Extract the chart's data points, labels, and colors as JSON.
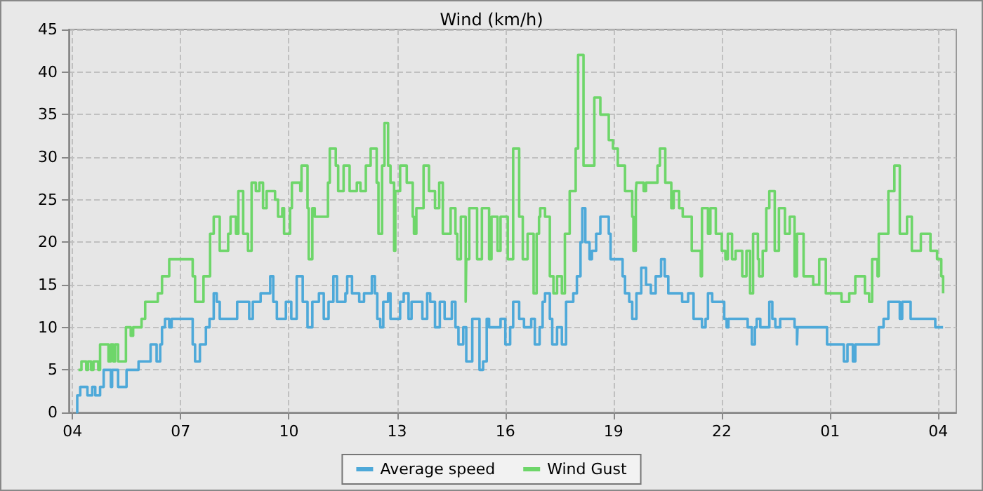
{
  "chart_data": {
    "type": "step",
    "title": "Wind (km/h)",
    "xlim": [
      "--01-01T03:54",
      "--01-02T04:30"
    ],
    "xticks": [
      {
        "value": "--01-01T04:00",
        "label": "04"
      },
      {
        "value": "--01-01T07:00",
        "label": "07"
      },
      {
        "value": "--01-01T10:00",
        "label": "10"
      },
      {
        "value": "--01-01T13:00",
        "label": "13"
      },
      {
        "value": "--01-01T16:00",
        "label": "16"
      },
      {
        "value": "--01-01T19:00",
        "label": "19"
      },
      {
        "value": "--01-01T22:00",
        "label": "22"
      },
      {
        "value": "--01-02T01:00",
        "label": "01"
      },
      {
        "value": "--01-02T04:00",
        "label": "04"
      }
    ],
    "ylim": [
      0,
      45
    ],
    "yticks": [
      0,
      5,
      10,
      15,
      20,
      25,
      30,
      35,
      40,
      45
    ],
    "grid": true,
    "legend": "bottom",
    "marker": "none",
    "line_style": "solid",
    "series": [
      {
        "name": "Average speed",
        "color": "#4ea9d9",
        "x": [
          "--01-01T04:06",
          "--01-01T04:08",
          "--01-01T04:13",
          "--01-01T04:25",
          "--01-01T04:33",
          "--01-01T04:38",
          "--01-01T04:46",
          "--01-01T04:52",
          "--01-01T05:04",
          "--01-01T05:06",
          "--01-01T05:16",
          "--01-01T05:30",
          "--01-01T05:50",
          "--01-01T06:10",
          "--01-01T06:20",
          "--01-01T06:26",
          "--01-01T06:29",
          "--01-01T06:34",
          "--01-01T06:41",
          "--01-01T06:45",
          "--01-01T07:00",
          "--01-01T07:20",
          "--01-01T07:24",
          "--01-01T07:32",
          "--01-01T07:42",
          "--01-01T07:48",
          "--01-01T07:55",
          "--01-01T08:00",
          "--01-01T08:05",
          "--01-01T08:34",
          "--01-01T08:54",
          "--01-01T09:00",
          "--01-01T09:13",
          "--01-01T09:29",
          "--01-01T09:34",
          "--01-01T09:40",
          "--01-01T09:55",
          "--01-01T10:04",
          "--01-01T10:13",
          "--01-01T10:23",
          "--01-01T10:31",
          "--01-01T10:39",
          "--01-01T10:50",
          "--01-01T10:58",
          "--01-01T11:06",
          "--01-01T11:14",
          "--01-01T11:20",
          "--01-01T11:34",
          "--01-01T11:37",
          "--01-01T11:45",
          "--01-01T11:57",
          "--01-01T12:05",
          "--01-01T12:18",
          "--01-01T12:23",
          "--01-01T12:27",
          "--01-01T12:32",
          "--01-01T12:37",
          "--01-01T12:45",
          "--01-01T12:49",
          "--01-01T13:05",
          "--01-01T13:11",
          "--01-01T13:19",
          "--01-01T13:24",
          "--01-01T13:42",
          "--01-01T13:50",
          "--01-01T13:55",
          "--01-01T14:03",
          "--01-01T14:11",
          "--01-01T14:19",
          "--01-01T14:31",
          "--01-01T14:37",
          "--01-01T14:42",
          "--01-01T14:50",
          "--01-01T14:55",
          "--01-01T15:05",
          "--01-01T15:17",
          "--01-01T15:23",
          "--01-01T15:29",
          "--01-01T15:33",
          "--01-01T15:52",
          "--01-01T16:00",
          "--01-01T16:08",
          "--01-01T16:13",
          "--01-01T16:23",
          "--01-01T16:31",
          "--01-01T16:43",
          "--01-01T16:49",
          "--01-01T16:57",
          "--01-01T17:02",
          "--01-01T17:06",
          "--01-01T17:14",
          "--01-01T17:18",
          "--01-01T17:26",
          "--01-01T17:34",
          "--01-01T17:41",
          "--01-01T17:53",
          "--01-01T17:59",
          "--01-01T18:05",
          "--01-01T18:08",
          "--01-01T18:13",
          "--01-01T18:20",
          "--01-01T18:24",
          "--01-01T18:31",
          "--01-01T18:38",
          "--01-01T18:52",
          "--01-01T18:55",
          "--01-01T19:15",
          "--01-01T19:19",
          "--01-01T19:26",
          "--01-01T19:31",
          "--01-01T19:38",
          "--01-01T19:46",
          "--01-01T19:54",
          "--01-01T20:02",
          "--01-01T20:10",
          "--01-01T20:19",
          "--01-01T20:25",
          "--01-01T20:31",
          "--01-01T20:54",
          "--01-01T21:04",
          "--01-01T21:13",
          "--01-01T21:27",
          "--01-01T21:33",
          "--01-01T21:37",
          "--01-01T21:44",
          "--01-01T22:04",
          "--01-01T22:08",
          "--01-01T22:11",
          "--01-01T22:43",
          "--01-01T22:50",
          "--01-01T22:55",
          "--01-01T22:58",
          "--01-01T23:04",
          "--01-01T23:19",
          "--01-01T23:24",
          "--01-01T23:29",
          "--01-01T23:37",
          "--01-02T00:01",
          "--01-02T00:05",
          "--01-02T00:06",
          "--01-02T00:55",
          "--01-02T01:23",
          "--01-02T01:29",
          "--01-02T01:38",
          "--01-02T01:42",
          "--01-02T02:21",
          "--01-02T02:29",
          "--01-02T02:37",
          "--01-02T02:56",
          "--01-02T03:00",
          "--01-02T03:14",
          "--01-02T03:55",
          "--01-02T04:08"
        ],
        "values": [
          0,
          2,
          3,
          2,
          3,
          2,
          3,
          5,
          3,
          5,
          3,
          5,
          6,
          8,
          6,
          8,
          10,
          11,
          10,
          11,
          11,
          8,
          6,
          8,
          10,
          11,
          14,
          13,
          11,
          13,
          11,
          13,
          14,
          16,
          13,
          11,
          13,
          11,
          16,
          13,
          10,
          13,
          14,
          11,
          13,
          16,
          13,
          14,
          16,
          14,
          13,
          14,
          16,
          14,
          11,
          10,
          13,
          14,
          11,
          13,
          14,
          11,
          13,
          11,
          14,
          13,
          10,
          13,
          11,
          13,
          10,
          8,
          10,
          6,
          11,
          5,
          6,
          11,
          10,
          11,
          8,
          10,
          13,
          11,
          10,
          11,
          8,
          10,
          13,
          14,
          11,
          8,
          10,
          8,
          13,
          14,
          16,
          20,
          24,
          20,
          18,
          19,
          21,
          23,
          21,
          18,
          16,
          14,
          13,
          11,
          14,
          17,
          15,
          14,
          16,
          18,
          16,
          14,
          13,
          14,
          11,
          10,
          11,
          14,
          13,
          11,
          10,
          11,
          10,
          8,
          10,
          11,
          10,
          13,
          11,
          10,
          11,
          10,
          8,
          10,
          8,
          6,
          8,
          6,
          8,
          10,
          11,
          13,
          11,
          13,
          11,
          10,
          10
        ]
      },
      {
        "name": "Wind Gust",
        "color": "#6ed66a",
        "x": [
          "--01-01T04:10",
          "--01-01T04:15",
          "--01-01T04:23",
          "--01-01T04:26",
          "--01-01T04:31",
          "--01-01T04:35",
          "--01-01T04:43",
          "--01-01T04:46",
          "--01-01T05:00",
          "--01-01T05:04",
          "--01-01T05:08",
          "--01-01T05:11",
          "--01-01T05:16",
          "--01-01T05:29",
          "--01-01T05:37",
          "--01-01T05:41",
          "--01-01T05:55",
          "--01-01T06:01",
          "--01-01T06:22",
          "--01-01T06:29",
          "--01-01T06:41",
          "--01-01T07:20",
          "--01-01T07:24",
          "--01-01T07:38",
          "--01-01T07:49",
          "--01-01T07:55",
          "--01-01T08:05",
          "--01-01T08:19",
          "--01-01T08:23",
          "--01-01T08:32",
          "--01-01T08:36",
          "--01-01T08:44",
          "--01-01T08:52",
          "--01-01T08:58",
          "--01-01T09:05",
          "--01-01T09:11",
          "--01-01T09:17",
          "--01-01T09:23",
          "--01-01T09:37",
          "--01-01T09:42",
          "--01-01T09:49",
          "--01-01T09:52",
          "--01-01T10:02",
          "--01-01T10:05",
          "--01-01T10:19",
          "--01-01T10:21",
          "--01-01T10:31",
          "--01-01T10:33",
          "--01-01T10:39",
          "--01-01T10:43",
          "--01-01T11:05",
          "--01-01T11:08",
          "--01-01T11:18",
          "--01-01T11:22",
          "--01-01T11:31",
          "--01-01T11:41",
          "--01-01T11:53",
          "--01-01T11:59",
          "--01-01T12:08",
          "--01-01T12:16",
          "--01-01T12:26",
          "--01-01T12:29",
          "--01-01T12:35",
          "--01-01T12:39",
          "--01-01T12:45",
          "--01-01T12:49",
          "--01-01T12:55",
          "--01-01T12:57",
          "--01-01T13:05",
          "--01-01T13:16",
          "--01-01T13:26",
          "--01-01T13:28",
          "--01-01T13:32",
          "--01-01T13:44",
          "--01-01T13:53",
          "--01-01T14:03",
          "--01-01T14:10",
          "--01-01T14:16",
          "--01-01T14:29",
          "--01-01T14:37",
          "--01-01T14:40",
          "--01-01T14:46",
          "--01-01T14:54",
          "--01-01T14:55",
          "--01-01T15:00",
          "--01-01T15:13",
          "--01-01T15:21",
          "--01-01T15:33",
          "--01-01T15:37",
          "--01-01T15:47",
          "--01-01T15:52",
          "--01-01T16:04",
          "--01-01T16:13",
          "--01-01T16:23",
          "--01-01T16:29",
          "--01-01T16:37",
          "--01-01T16:47",
          "--01-01T16:52",
          "--01-01T16:56",
          "--01-01T16:58",
          "--01-01T17:06",
          "--01-01T17:14",
          "--01-01T17:20",
          "--01-01T17:26",
          "--01-01T17:34",
          "--01-01T17:39",
          "--01-01T17:47",
          "--01-01T17:57",
          "--01-01T18:01",
          "--01-01T18:10",
          "--01-01T18:28",
          "--01-01T18:38",
          "--01-01T18:52",
          "--01-01T18:59",
          "--01-01T19:07",
          "--01-01T19:19",
          "--01-01T19:31",
          "--01-01T19:33",
          "--01-01T19:37",
          "--01-01T19:38",
          "--01-01T19:50",
          "--01-01T19:54",
          "--01-01T20:13",
          "--01-01T20:17",
          "--01-01T20:26",
          "--01-01T20:36",
          "--01-01T20:40",
          "--01-01T20:49",
          "--01-01T20:55",
          "--01-01T21:10",
          "--01-01T21:25",
          "--01-01T21:27",
          "--01-01T21:37",
          "--01-01T21:41",
          "--01-01T21:50",
          "--01-01T22:00",
          "--01-01T22:06",
          "--01-01T22:10",
          "--01-01T22:17",
          "--01-01T22:23",
          "--01-01T22:34",
          "--01-01T22:41",
          "--01-01T22:47",
          "--01-01T22:52",
          "--01-01T23:00",
          "--01-01T23:02",
          "--01-01T23:08",
          "--01-01T23:14",
          "--01-01T23:19",
          "--01-01T23:28",
          "--01-01T23:35",
          "--01-01T23:45",
          "--01-01T23:53",
          "--01-02T00:01",
          "--01-02T00:05",
          "--01-02T00:16",
          "--01-02T00:32",
          "--01-02T00:42",
          "--01-02T00:53",
          "--01-02T01:19",
          "--01-02T01:32",
          "--01-02T01:42",
          "--01-02T01:58",
          "--01-02T02:05",
          "--01-02T02:10",
          "--01-02T02:19",
          "--01-02T02:21",
          "--01-02T02:37",
          "--01-02T02:47",
          "--01-02T02:56",
          "--01-02T03:08",
          "--01-02T03:16",
          "--01-02T03:31",
          "--01-02T03:47",
          "--01-02T03:58",
          "--01-02T04:05",
          "--01-02T04:08"
        ],
        "values": [
          5,
          6,
          5,
          6,
          5,
          6,
          5,
          8,
          6,
          8,
          6,
          8,
          6,
          10,
          9,
          10,
          11,
          13,
          14,
          16,
          18,
          16,
          13,
          16,
          21,
          23,
          19,
          21,
          23,
          21,
          26,
          21,
          19,
          27,
          26,
          27,
          24,
          26,
          25,
          23,
          24,
          21,
          24,
          27,
          26,
          29,
          24,
          18,
          24,
          23,
          27,
          31,
          29,
          26,
          29,
          26,
          27,
          26,
          29,
          31,
          27,
          21,
          29,
          34,
          29,
          27,
          19,
          26,
          29,
          27,
          23,
          21,
          24,
          29,
          26,
          24,
          27,
          21,
          24,
          21,
          18,
          23,
          13,
          18,
          24,
          18,
          24,
          18,
          23,
          19,
          23,
          18,
          31,
          23,
          18,
          21,
          14,
          21,
          23,
          24,
          23,
          16,
          14,
          16,
          14,
          21,
          26,
          31,
          42,
          29,
          37,
          35,
          32,
          31,
          29,
          26,
          23,
          19,
          26,
          27,
          26,
          27,
          29,
          31,
          27,
          24,
          26,
          24,
          23,
          19,
          16,
          24,
          21,
          24,
          21,
          19,
          18,
          21,
          18,
          19,
          16,
          19,
          14,
          21,
          18,
          16,
          19,
          24,
          26,
          19,
          24,
          21,
          23,
          16,
          21,
          16,
          15,
          18,
          14,
          13,
          14,
          16,
          14,
          13,
          18,
          16,
          21,
          26,
          29,
          21,
          23,
          19,
          21,
          19,
          18,
          16,
          14
        ]
      }
    ]
  }
}
